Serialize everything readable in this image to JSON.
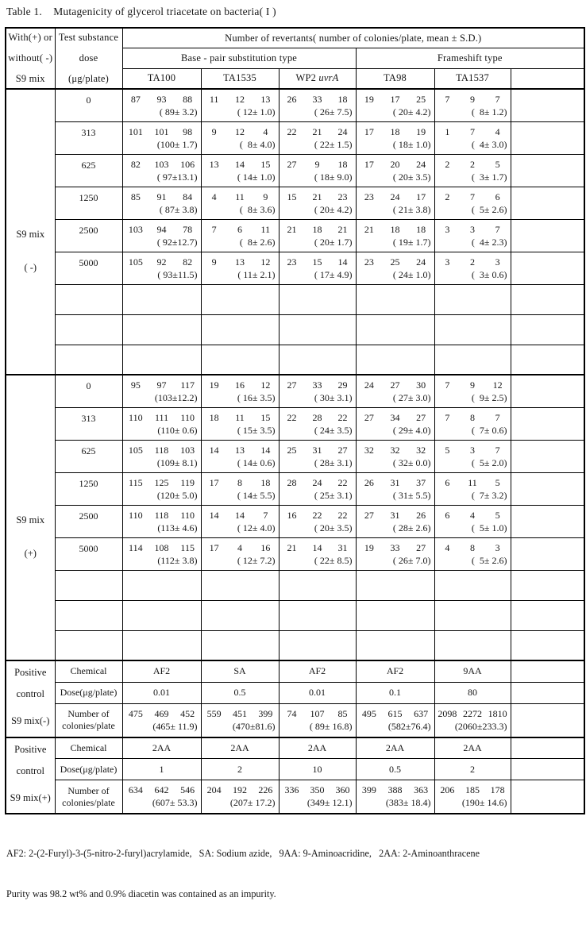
{
  "title": "Table 1.    Mutagenicity of glycerol triacetate on bacteria( I )",
  "header": {
    "with_or_without": [
      "With(+) or",
      "without( -)",
      "S9 mix"
    ],
    "test_substance": [
      "Test substance",
      "dose",
      "(μg/plate)"
    ],
    "revertants": "Number of revertants( number of colonies/plate, mean ± S.D.)",
    "base_pair_group": "Base - pair substitution type",
    "frameshift_group": "Frameshift type",
    "strains": [
      "TA100",
      "TA1535",
      "WP2 uvrA",
      "TA98",
      "TA1537",
      ""
    ]
  },
  "sections": [
    {
      "s9_label": "S9 mix",
      "s9_sign": "( -)",
      "empty_rows": 3,
      "rows": [
        {
          "dose": "0",
          "cells": [
            {
              "v": [
                "87",
                "93",
                "88"
              ],
              "m": "( 89± 3.2)"
            },
            {
              "v": [
                "11",
                "12",
                "13"
              ],
              "m": "( 12± 1.0)"
            },
            {
              "v": [
                "26",
                "33",
                "18"
              ],
              "m": "( 26± 7.5)"
            },
            {
              "v": [
                "19",
                "17",
                "25"
              ],
              "m": "( 20± 4.2)"
            },
            {
              "v": [
                "7",
                "9",
                "7"
              ],
              "m": "(  8± 1.2)"
            }
          ]
        },
        {
          "dose": "313",
          "cells": [
            {
              "v": [
                "101",
                "101",
                "98"
              ],
              "m": "(100± 1.7)"
            },
            {
              "v": [
                "9",
                "12",
                "4"
              ],
              "m": "(  8± 4.0)"
            },
            {
              "v": [
                "22",
                "21",
                "24"
              ],
              "m": "( 22± 1.5)"
            },
            {
              "v": [
                "17",
                "18",
                "19"
              ],
              "m": "( 18± 1.0)"
            },
            {
              "v": [
                "1",
                "7",
                "4"
              ],
              "m": "(  4± 3.0)"
            }
          ]
        },
        {
          "dose": "625",
          "cells": [
            {
              "v": [
                "82",
                "103",
                "106"
              ],
              "m": "( 97±13.1)"
            },
            {
              "v": [
                "13",
                "14",
                "15"
              ],
              "m": "( 14± 1.0)"
            },
            {
              "v": [
                "27",
                "9",
                "18"
              ],
              "m": "( 18± 9.0)"
            },
            {
              "v": [
                "17",
                "20",
                "24"
              ],
              "m": "( 20± 3.5)"
            },
            {
              "v": [
                "2",
                "2",
                "5"
              ],
              "m": "(  3± 1.7)"
            }
          ]
        },
        {
          "dose": "1250",
          "cells": [
            {
              "v": [
                "85",
                "91",
                "84"
              ],
              "m": "( 87± 3.8)"
            },
            {
              "v": [
                "4",
                "11",
                "9"
              ],
              "m": "(  8± 3.6)"
            },
            {
              "v": [
                "15",
                "21",
                "23"
              ],
              "m": "( 20± 4.2)"
            },
            {
              "v": [
                "23",
                "24",
                "17"
              ],
              "m": "( 21± 3.8)"
            },
            {
              "v": [
                "2",
                "7",
                "6"
              ],
              "m": "(  5± 2.6)"
            }
          ]
        },
        {
          "dose": "2500",
          "cells": [
            {
              "v": [
                "103",
                "94",
                "78"
              ],
              "m": "( 92±12.7)"
            },
            {
              "v": [
                "7",
                "6",
                "11"
              ],
              "m": "(  8± 2.6)"
            },
            {
              "v": [
                "21",
                "18",
                "21"
              ],
              "m": "( 20± 1.7)"
            },
            {
              "v": [
                "21",
                "18",
                "18"
              ],
              "m": "( 19± 1.7)"
            },
            {
              "v": [
                "3",
                "3",
                "7"
              ],
              "m": "(  4± 2.3)"
            }
          ]
        },
        {
          "dose": "5000",
          "cells": [
            {
              "v": [
                "105",
                "92",
                "82"
              ],
              "m": "( 93±11.5)"
            },
            {
              "v": [
                "9",
                "13",
                "12"
              ],
              "m": "( 11± 2.1)"
            },
            {
              "v": [
                "23",
                "15",
                "14"
              ],
              "m": "( 17± 4.9)"
            },
            {
              "v": [
                "23",
                "25",
                "24"
              ],
              "m": "( 24± 1.0)"
            },
            {
              "v": [
                "3",
                "2",
                "3"
              ],
              "m": "(  3± 0.6)"
            }
          ]
        }
      ]
    },
    {
      "s9_label": "S9 mix",
      "s9_sign": "(+)",
      "empty_rows": 3,
      "rows": [
        {
          "dose": "0",
          "cells": [
            {
              "v": [
                "95",
                "97",
                "117"
              ],
              "m": "(103±12.2)"
            },
            {
              "v": [
                "19",
                "16",
                "12"
              ],
              "m": "( 16± 3.5)"
            },
            {
              "v": [
                "27",
                "33",
                "29"
              ],
              "m": "( 30± 3.1)"
            },
            {
              "v": [
                "24",
                "27",
                "30"
              ],
              "m": "( 27± 3.0)"
            },
            {
              "v": [
                "7",
                "9",
                "12"
              ],
              "m": "(  9± 2.5)"
            }
          ]
        },
        {
          "dose": "313",
          "cells": [
            {
              "v": [
                "110",
                "111",
                "110"
              ],
              "m": "(110± 0.6)"
            },
            {
              "v": [
                "18",
                "11",
                "15"
              ],
              "m": "( 15± 3.5)"
            },
            {
              "v": [
                "22",
                "28",
                "22"
              ],
              "m": "( 24± 3.5)"
            },
            {
              "v": [
                "27",
                "34",
                "27"
              ],
              "m": "( 29± 4.0)"
            },
            {
              "v": [
                "7",
                "8",
                "7"
              ],
              "m": "(  7± 0.6)"
            }
          ]
        },
        {
          "dose": "625",
          "cells": [
            {
              "v": [
                "105",
                "118",
                "103"
              ],
              "m": "(109± 8.1)"
            },
            {
              "v": [
                "14",
                "13",
                "14"
              ],
              "m": "( 14± 0.6)"
            },
            {
              "v": [
                "25",
                "31",
                "27"
              ],
              "m": "( 28± 3.1)"
            },
            {
              "v": [
                "32",
                "32",
                "32"
              ],
              "m": "( 32± 0.0)"
            },
            {
              "v": [
                "5",
                "3",
                "7"
              ],
              "m": "(  5± 2.0)"
            }
          ]
        },
        {
          "dose": "1250",
          "cells": [
            {
              "v": [
                "115",
                "125",
                "119"
              ],
              "m": "(120± 5.0)"
            },
            {
              "v": [
                "17",
                "8",
                "18"
              ],
              "m": "( 14± 5.5)"
            },
            {
              "v": [
                "28",
                "24",
                "22"
              ],
              "m": "( 25± 3.1)"
            },
            {
              "v": [
                "26",
                "31",
                "37"
              ],
              "m": "( 31± 5.5)"
            },
            {
              "v": [
                "6",
                "11",
                "5"
              ],
              "m": "(  7± 3.2)"
            }
          ]
        },
        {
          "dose": "2500",
          "cells": [
            {
              "v": [
                "110",
                "118",
                "110"
              ],
              "m": "(113± 4.6)"
            },
            {
              "v": [
                "14",
                "14",
                "7"
              ],
              "m": "( 12± 4.0)"
            },
            {
              "v": [
                "16",
                "22",
                "22"
              ],
              "m": "( 20± 3.5)"
            },
            {
              "v": [
                "27",
                "31",
                "26"
              ],
              "m": "( 28± 2.6)"
            },
            {
              "v": [
                "6",
                "4",
                "5"
              ],
              "m": "(  5± 1.0)"
            }
          ]
        },
        {
          "dose": "5000",
          "cells": [
            {
              "v": [
                "114",
                "108",
                "115"
              ],
              "m": "(112± 3.8)"
            },
            {
              "v": [
                "17",
                "4",
                "16"
              ],
              "m": "( 12± 7.2)"
            },
            {
              "v": [
                "21",
                "14",
                "31"
              ],
              "m": "( 22± 8.5)"
            },
            {
              "v": [
                "19",
                "33",
                "27"
              ],
              "m": "( 26± 7.0)"
            },
            {
              "v": [
                "4",
                "8",
                "3"
              ],
              "m": "(  5± 2.6)"
            }
          ]
        }
      ]
    }
  ],
  "positive_controls": [
    {
      "labels": [
        "Positive",
        "control",
        "S9 mix(-)"
      ],
      "chemical_label": "Chemical",
      "dose_label": "Dose(μg/plate)",
      "number_label": [
        "Number of",
        "colonies/plate"
      ],
      "chemicals": [
        "AF2",
        "SA",
        "AF2",
        "AF2",
        "9AA"
      ],
      "doses": [
        "0.01",
        "0.5",
        "0.01",
        "0.1",
        "80"
      ],
      "numbers": [
        {
          "v": [
            "475",
            "469",
            "452"
          ],
          "m": "(465± 11.9)"
        },
        {
          "v": [
            "559",
            "451",
            "399"
          ],
          "m": "(470±81.6)"
        },
        {
          "v": [
            "74",
            "107",
            "85"
          ],
          "m": "( 89± 16.8)"
        },
        {
          "v": [
            "495",
            "615",
            "637"
          ],
          "m": "(582±76.4)"
        },
        {
          "v": [
            "2098",
            "2272",
            "1810"
          ],
          "m": "(2060±233.3)"
        }
      ]
    },
    {
      "labels": [
        "Positive",
        "control",
        "S9 mix(+)"
      ],
      "chemical_label": "Chemical",
      "dose_label": "Dose(μg/plate)",
      "number_label": [
        "Number of",
        "colonies/plate"
      ],
      "chemicals": [
        "2AA",
        "2AA",
        "2AA",
        "2AA",
        "2AA"
      ],
      "doses": [
        "1",
        "2",
        "10",
        "0.5",
        "2"
      ],
      "numbers": [
        {
          "v": [
            "634",
            "642",
            "546"
          ],
          "m": "(607± 53.3)"
        },
        {
          "v": [
            "204",
            "192",
            "226"
          ],
          "m": "(207± 17.2)"
        },
        {
          "v": [
            "336",
            "350",
            "360"
          ],
          "m": "(349± 12.1)"
        },
        {
          "v": [
            "399",
            "388",
            "363"
          ],
          "m": "(383± 18.4)"
        },
        {
          "v": [
            "206",
            "185",
            "178"
          ],
          "m": "(190± 14.6)"
        }
      ]
    }
  ],
  "footnotes": [
    "AF2: 2-(2-Furyl)-3-(5-nitro-2-furyl)acrylamide,   SA: Sodium azide,   9AA: 9-Aminoacridine,   2AA: 2-Aminoanthracene",
    "Purity was 98.2 wt% and 0.9% diacetin was contained as an impurity."
  ]
}
